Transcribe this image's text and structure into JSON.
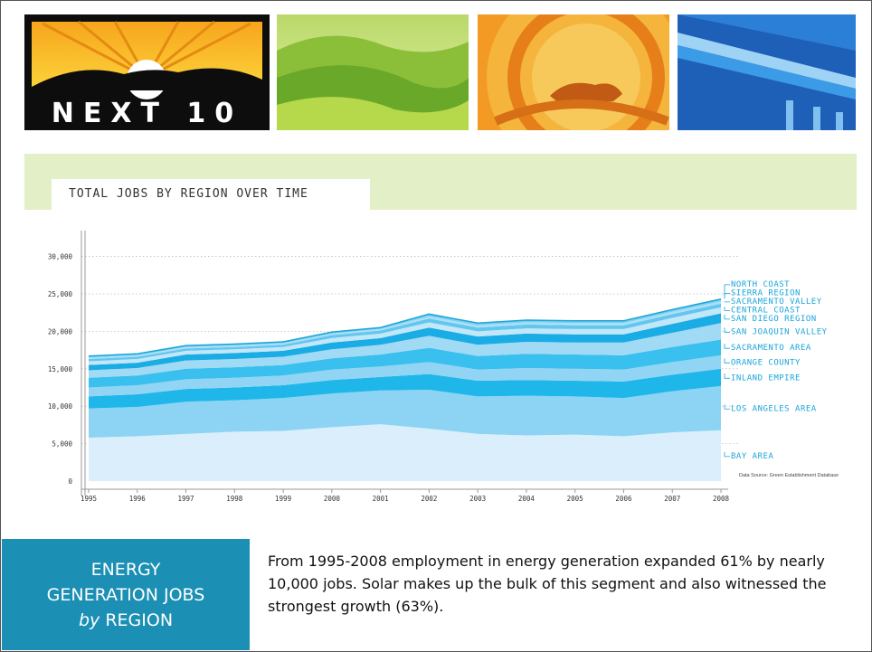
{
  "header": {
    "logo_text": "NEXT 10"
  },
  "chart_data": {
    "type": "area",
    "stacked": true,
    "title": "TOTAL JOBS BY REGION OVER TIME",
    "x": [
      1995,
      1996,
      1997,
      1998,
      1999,
      2000,
      2001,
      2002,
      2003,
      2004,
      2005,
      2006,
      2007,
      2008
    ],
    "yticks": [
      0,
      5000,
      10000,
      15000,
      20000,
      25000,
      30000
    ],
    "ytick_labels": [
      "0",
      "5,000",
      "10,000",
      "15,000",
      "20,000",
      "25,000",
      "30,000"
    ],
    "ylim": [
      0,
      32000
    ],
    "grid": "horizontal-dotted",
    "legend": "right-inline",
    "source_note": "Data Source: Green Establishment Database",
    "series": [
      {
        "name": "BAY AREA",
        "values": [
          5800,
          6000,
          6300,
          6600,
          6700,
          7200,
          7600,
          7000,
          6300,
          6100,
          6200,
          6000,
          6500,
          6800
        ]
      },
      {
        "name": "LOS ANGELES AREA",
        "values": [
          3900,
          3900,
          4300,
          4200,
          4400,
          4500,
          4500,
          5200,
          5000,
          5300,
          5100,
          5100,
          5500,
          5900
        ]
      },
      {
        "name": "INLAND EMPIRE",
        "values": [
          1600,
          1700,
          1700,
          1700,
          1700,
          1800,
          1800,
          2100,
          2100,
          2100,
          2100,
          2200,
          2200,
          2300
        ]
      },
      {
        "name": "ORANGE COUNTY",
        "values": [
          1200,
          1200,
          1300,
          1300,
          1300,
          1400,
          1400,
          1600,
          1500,
          1600,
          1600,
          1600,
          1700,
          1800
        ]
      },
      {
        "name": "SACRAMENTO AREA",
        "values": [
          1300,
          1300,
          1400,
          1400,
          1400,
          1500,
          1600,
          1900,
          1800,
          1900,
          1900,
          1900,
          2000,
          2100
        ]
      },
      {
        "name": "SAN JOAQUIN VALLEY",
        "values": [
          1000,
          1000,
          1100,
          1100,
          1100,
          1200,
          1300,
          1600,
          1500,
          1600,
          1600,
          1700,
          1900,
          2200
        ]
      },
      {
        "name": "SAN DIEGO REGION",
        "values": [
          700,
          700,
          800,
          800,
          800,
          900,
          900,
          1100,
          1100,
          1100,
          1100,
          1100,
          1200,
          1300
        ]
      },
      {
        "name": "CENTRAL COAST",
        "values": [
          500,
          500,
          500,
          500,
          500,
          600,
          600,
          700,
          700,
          700,
          700,
          700,
          800,
          800
        ]
      },
      {
        "name": "SACRAMENTO VALLEY",
        "values": [
          300,
          300,
          300,
          300,
          300,
          400,
          400,
          500,
          500,
          500,
          500,
          500,
          500,
          500
        ]
      },
      {
        "name": "SIERRA REGION",
        "values": [
          200,
          200,
          200,
          200,
          200,
          200,
          200,
          300,
          300,
          300,
          300,
          300,
          300,
          300
        ]
      },
      {
        "name": "NORTH COAST",
        "values": [
          200,
          200,
          200,
          200,
          200,
          200,
          200,
          300,
          300,
          300,
          300,
          300,
          300,
          300
        ]
      }
    ],
    "colors": [
      "#daeefb",
      "#8dd3f3",
      "#1fb7ea",
      "#92d4f3",
      "#39c0ee",
      "#a1daf5",
      "#1aace4",
      "#c2e7f8",
      "#62c6ef",
      "#aadff6",
      "#7ccff1"
    ]
  },
  "footer": {
    "section_line1": "ENERGY",
    "section_line2": "GENERATION JOBS",
    "section_by": "by",
    "section_region": "REGION",
    "summary": "From 1995-2008 employment in energy generation expanded 61% by nearly 10,000 jobs.  Solar makes up the bulk of this segment and also witnessed the strongest growth (63%)."
  }
}
